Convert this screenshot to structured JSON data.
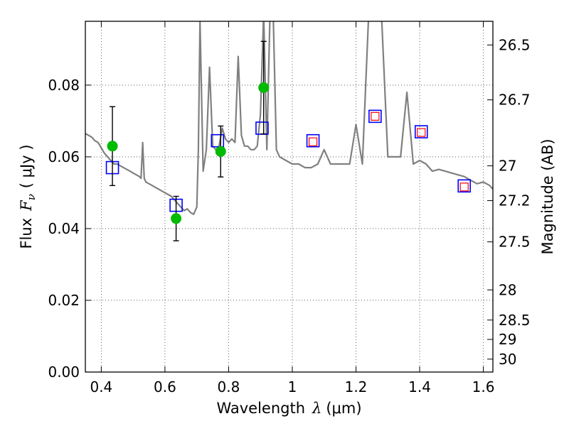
{
  "chart_data": {
    "type": "scatter",
    "title": "",
    "xlabel": "Wavelength",
    "xlabel_math": "λ",
    "xlabel_unit": "(μm)",
    "ylabel": "Flux",
    "ylabel_math": "F",
    "ylabel_sub": "ν",
    "ylabel_unit": "( μJy )",
    "y2label": "Magnitude (AB)",
    "xlim": [
      0.35,
      1.63
    ],
    "ylim": [
      0.0,
      0.0978
    ],
    "xticks": [
      0.4,
      0.6,
      0.8,
      1.0,
      1.2,
      1.4,
      1.6
    ],
    "xtick_labels": [
      "0.4",
      "0.6",
      "0.8",
      "1",
      "1.2",
      "1.4",
      "1.6"
    ],
    "yticks": [
      0.0,
      0.02,
      0.04,
      0.06,
      0.08
    ],
    "ytick_labels": [
      "0.00",
      "0.02",
      "0.04",
      "0.06",
      "0.08"
    ],
    "y2ticks": [
      {
        "label": "26.5",
        "flux": 0.0912
      },
      {
        "label": "26.7",
        "flux": 0.0759
      },
      {
        "label": "27",
        "flux": 0.0575
      },
      {
        "label": "27.2",
        "flux": 0.0478
      },
      {
        "label": "27.5",
        "flux": 0.0363
      },
      {
        "label": "28",
        "flux": 0.0229
      },
      {
        "label": "28.5",
        "flux": 0.0145
      },
      {
        "label": "29",
        "flux": 0.0091
      },
      {
        "label": "30",
        "flux": 0.0036
      }
    ],
    "grid": true,
    "colors": {
      "model": "#808080",
      "observed": "#00bb00",
      "model_phot": "#0000ff",
      "predicted": "#ff0000",
      "errorbar": "#000000"
    },
    "model_sed": {
      "x": [
        0.35,
        0.36,
        0.37,
        0.38,
        0.39,
        0.4,
        0.41,
        0.42,
        0.43,
        0.44,
        0.45,
        0.46,
        0.47,
        0.48,
        0.49,
        0.5,
        0.51,
        0.52,
        0.525,
        0.53,
        0.535,
        0.54,
        0.55,
        0.56,
        0.57,
        0.58,
        0.59,
        0.6,
        0.61,
        0.62,
        0.63,
        0.64,
        0.65,
        0.66,
        0.67,
        0.68,
        0.69,
        0.7,
        0.705,
        0.71,
        0.72,
        0.73,
        0.74,
        0.75,
        0.76,
        0.77,
        0.78,
        0.79,
        0.8,
        0.81,
        0.82,
        0.83,
        0.84,
        0.85,
        0.86,
        0.87,
        0.88,
        0.89,
        0.9,
        0.91,
        0.92,
        0.93,
        0.94,
        0.95,
        0.96,
        0.98,
        1.0,
        1.02,
        1.04,
        1.06,
        1.08,
        1.1,
        1.12,
        1.14,
        1.16,
        1.18,
        1.2,
        1.22,
        1.24,
        1.26,
        1.28,
        1.3,
        1.32,
        1.34,
        1.36,
        1.38,
        1.4,
        1.42,
        1.44,
        1.46,
        1.48,
        1.5,
        1.52,
        1.54,
        1.56,
        1.58,
        1.6,
        1.62,
        1.63
      ],
      "y": [
        0.0665,
        0.066,
        0.0655,
        0.0645,
        0.064,
        0.0625,
        0.061,
        0.06,
        0.059,
        0.058,
        0.058,
        0.0575,
        0.057,
        0.0565,
        0.056,
        0.0555,
        0.055,
        0.0545,
        0.054,
        0.064,
        0.054,
        0.053,
        0.0525,
        0.052,
        0.0515,
        0.051,
        0.0505,
        0.05,
        0.0495,
        0.049,
        0.048,
        0.047,
        0.046,
        0.045,
        0.0455,
        0.0445,
        0.044,
        0.046,
        0.062,
        0.098,
        0.056,
        0.062,
        0.085,
        0.063,
        0.062,
        0.063,
        0.068,
        0.065,
        0.064,
        0.065,
        0.064,
        0.088,
        0.066,
        0.063,
        0.063,
        0.062,
        0.062,
        0.063,
        0.072,
        0.1,
        0.062,
        0.1,
        0.1,
        0.062,
        0.06,
        0.059,
        0.058,
        0.058,
        0.057,
        0.057,
        0.058,
        0.062,
        0.058,
        0.058,
        0.058,
        0.058,
        0.069,
        0.058,
        0.1,
        0.1,
        0.1,
        0.06,
        0.06,
        0.06,
        0.078,
        0.058,
        0.059,
        0.058,
        0.056,
        0.0565,
        0.056,
        0.0555,
        0.055,
        0.0545,
        0.0535,
        0.0525,
        0.053,
        0.052,
        0.051
      ]
    },
    "observed": {
      "x": [
        0.435,
        0.635,
        0.775,
        0.91
      ],
      "y": [
        0.063,
        0.0428,
        0.0615,
        0.0793
      ],
      "yerr": [
        0.011,
        0.0062,
        0.0071,
        0.0129
      ]
    },
    "model_photometry": {
      "x": [
        0.435,
        0.635,
        0.765,
        0.905,
        1.065,
        1.26,
        1.405,
        1.54
      ],
      "y": [
        0.057,
        0.0465,
        0.0645,
        0.068,
        0.0645,
        0.0713,
        0.067,
        0.0519
      ]
    },
    "predicted_photometry": {
      "x": [
        1.065,
        1.26,
        1.405,
        1.54
      ],
      "y": [
        0.0642,
        0.0713,
        0.0668,
        0.0516
      ]
    }
  }
}
